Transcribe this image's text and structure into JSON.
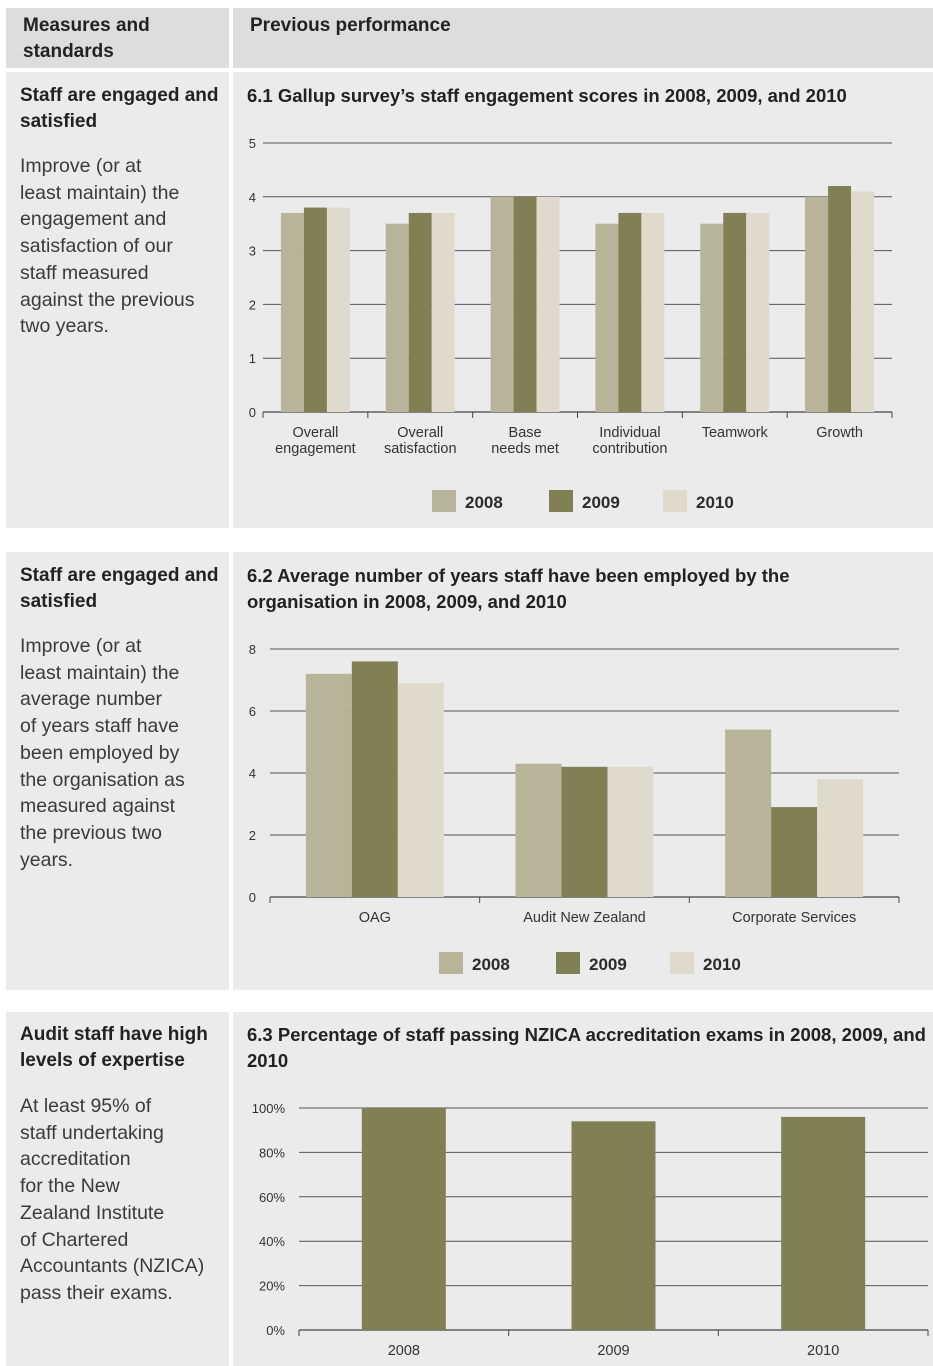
{
  "header": {
    "col1": "Measures and\nstandards",
    "col2": "Previous performance"
  },
  "colors": {
    "2008": "#b8b49a",
    "2009": "#808054",
    "2010": "#dedbcd",
    "panel": "#ebebeb"
  },
  "sections": [
    {
      "measure_title": "Staff are engaged and satisfied",
      "measure_text": "Improve (or at\nleast maintain) the\nengagement and\nsatisfaction of our\nstaff measured\nagainst the previous\ntwo years.",
      "chart_title": "6.1 Gallup survey’s staff engagement scores in 2008, 2009, and 2010",
      "legend": [
        "2008",
        "2009",
        "2010"
      ]
    },
    {
      "measure_title": "Staff are engaged and satisfied",
      "measure_text": "Improve (or at\nleast maintain) the\naverage number\nof years staff have\nbeen employed by\nthe organisation as\nmeasured against\nthe previous two\nyears.",
      "chart_title": "6.2 Average number of years staff have been employed by the organisation in 2008, 2009, and 2010",
      "legend": [
        "2008",
        "2009",
        "2010"
      ]
    },
    {
      "measure_title": "Audit staff have high levels of expertise",
      "measure_text": "At least 95% of\nstaff undertaking\naccreditation\nfor the New\nZealand Institute\nof Chartered\nAccountants (NZICA)\npass their exams.",
      "chart_title": "6.3 Percentage of staff passing NZICA accreditation exams in 2008, 2009, and 2010"
    }
  ],
  "chart_data": [
    {
      "type": "bar",
      "title": "6.1 Gallup survey’s staff engagement scores in 2008, 2009, and 2010",
      "categories": [
        "Overall\nengagement",
        "Overall\nsatisfaction",
        "Base\nneeds met",
        "Individual\ncontribution",
        "Teamwork",
        "Growth"
      ],
      "series": [
        {
          "name": "2008",
          "values": [
            3.7,
            3.5,
            4.0,
            3.5,
            3.5,
            4.0
          ]
        },
        {
          "name": "2009",
          "values": [
            3.8,
            3.7,
            4.0,
            3.7,
            3.7,
            4.2
          ]
        },
        {
          "name": "2010",
          "values": [
            3.8,
            3.7,
            4.0,
            3.7,
            3.7,
            4.1
          ]
        }
      ],
      "ylim": [
        0,
        5
      ],
      "yticks": [
        "0",
        "1",
        "2",
        "3",
        "4",
        "5"
      ],
      "grid": true,
      "legend": "bottom"
    },
    {
      "type": "bar",
      "title": "6.2 Average number of years staff have been employed by the organisation in 2008, 2009, and 2010",
      "categories": [
        "OAG",
        "Audit New Zealand",
        "Corporate Services"
      ],
      "series": [
        {
          "name": "2008",
          "values": [
            7.2,
            4.3,
            5.4
          ]
        },
        {
          "name": "2009",
          "values": [
            7.6,
            4.2,
            2.9
          ]
        },
        {
          "name": "2010",
          "values": [
            6.9,
            4.2,
            3.8
          ]
        }
      ],
      "ylim": [
        0,
        8
      ],
      "yticks": [
        "0",
        "2",
        "4",
        "6",
        "8"
      ],
      "grid": true,
      "legend": "bottom"
    },
    {
      "type": "bar",
      "title": "6.3 Percentage of staff passing NZICA accreditation exams in 2008, 2009, and 2010",
      "categories": [
        "2008",
        "2009",
        "2010"
      ],
      "values": [
        100,
        94,
        96
      ],
      "ylim": [
        0,
        100
      ],
      "yticks": [
        "0%",
        "20%",
        "40%",
        "60%",
        "80%",
        "100%"
      ],
      "grid": true
    }
  ]
}
